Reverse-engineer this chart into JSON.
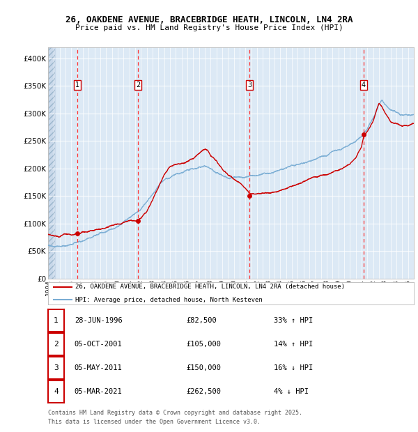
{
  "title1": "26, OAKDENE AVENUE, BRACEBRIDGE HEATH, LINCOLN, LN4 2RA",
  "title2": "Price paid vs. HM Land Registry's House Price Index (HPI)",
  "bg_color": "#dce9f5",
  "fig_bg_color": "#ffffff",
  "grid_color": "#ffffff",
  "red_line_color": "#cc0000",
  "blue_line_color": "#7aadd4",
  "sale_marker_color": "#cc0000",
  "dashed_line_color": "#ff4444",
  "ylim": [
    0,
    420000
  ],
  "yticks": [
    0,
    50000,
    100000,
    150000,
    200000,
    250000,
    300000,
    350000,
    400000
  ],
  "sale_dates_decimal": [
    1996.494,
    2001.756,
    2011.339,
    2021.172
  ],
  "sale_prices": [
    82500,
    105000,
    150000,
    262500
  ],
  "sale_labels": [
    "1",
    "2",
    "3",
    "4"
  ],
  "legend_red": "26, OAKDENE AVENUE, BRACEBRIDGE HEATH, LINCOLN, LN4 2RA (detached house)",
  "legend_blue": "HPI: Average price, detached house, North Kesteven",
  "table_entries": [
    {
      "num": "1",
      "date": "28-JUN-1996",
      "price": "£82,500",
      "hpi": "33% ↑ HPI"
    },
    {
      "num": "2",
      "date": "05-OCT-2001",
      "price": "£105,000",
      "hpi": "14% ↑ HPI"
    },
    {
      "num": "3",
      "date": "05-MAY-2011",
      "price": "£150,000",
      "hpi": "16% ↓ HPI"
    },
    {
      "num": "4",
      "date": "05-MAR-2021",
      "price": "£262,500",
      "hpi": "4% ↓ HPI"
    }
  ],
  "footnote1": "Contains HM Land Registry data © Crown copyright and database right 2025.",
  "footnote2": "This data is licensed under the Open Government Licence v3.0.",
  "xstart": 1994.0,
  "xend": 2025.5
}
